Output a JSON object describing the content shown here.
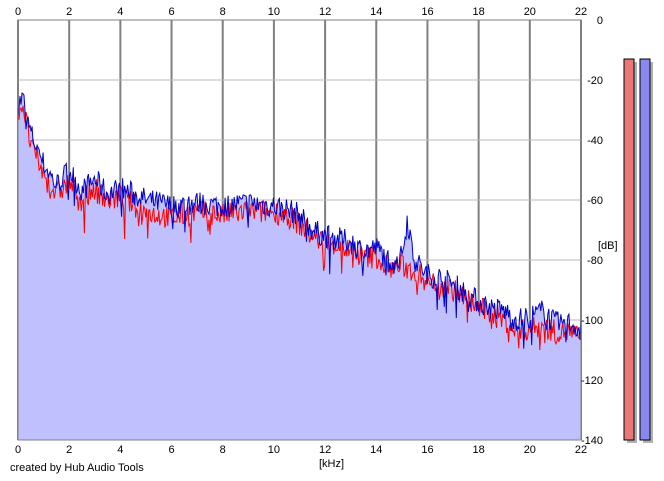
{
  "chart_data": {
    "type": "area",
    "title": "",
    "xlabel": "[kHz]",
    "ylabel": "[dB]",
    "xlim": [
      0,
      22
    ],
    "ylim": [
      -140,
      0
    ],
    "x_ticks": [
      "0",
      "2",
      "4",
      "6",
      "8",
      "10",
      "12",
      "14",
      "16",
      "18",
      "20",
      "22"
    ],
    "y_ticks": [
      "0",
      "-20",
      "-40",
      "-60",
      "-80",
      "-100",
      "-120",
      "-140"
    ],
    "grid": true,
    "fill_color": "#c0c0ff",
    "series": [
      {
        "color": "#0000cc",
        "x": [
          0,
          0.2,
          0.4,
          0.6,
          0.8,
          1.0,
          1.5,
          2.0,
          2.5,
          3.0,
          3.5,
          4.0,
          5.0,
          6.0,
          7.0,
          8.0,
          9.0,
          10.0,
          10.5,
          11.0,
          11.5,
          12.0,
          12.5,
          13.0,
          13.5,
          14.0,
          14.5,
          15.0,
          15.2,
          15.5,
          16.0,
          16.5,
          17.0,
          17.5,
          18.0,
          18.5,
          19.0,
          19.5,
          20.0,
          20.5,
          21.0,
          21.5,
          22.0
        ],
        "y": [
          -28,
          -26,
          -35,
          -40,
          -43,
          -48,
          -55,
          -50,
          -57,
          -53,
          -58,
          -56,
          -60,
          -62,
          -61,
          -62,
          -61,
          -62,
          -63,
          -65,
          -70,
          -72,
          -73,
          -74,
          -77,
          -76,
          -80,
          -79,
          -66,
          -80,
          -85,
          -86,
          -88,
          -91,
          -94,
          -96,
          -97,
          -100,
          -99,
          -97,
          -101,
          -101,
          -103
        ]
      },
      {
        "color": "#ff0000",
        "x": [
          0,
          0.2,
          0.4,
          0.6,
          0.8,
          1.0,
          1.5,
          2.0,
          2.5,
          3.0,
          3.5,
          4.0,
          5.0,
          6.0,
          7.0,
          8.0,
          9.0,
          10.0,
          10.5,
          11.0,
          11.5,
          12.0,
          12.5,
          13.0,
          13.5,
          14.0,
          14.5,
          15.0,
          15.5,
          16.0,
          16.5,
          17.0,
          17.5,
          18.0,
          18.5,
          19.0,
          19.5,
          20.0,
          20.5,
          21.0,
          21.5,
          22.0
        ],
        "y": [
          -30,
          -28,
          -38,
          -44,
          -47,
          -52,
          -58,
          -54,
          -60,
          -56,
          -60,
          -59,
          -64,
          -66,
          -64,
          -65,
          -64,
          -64,
          -65,
          -68,
          -72,
          -74,
          -75,
          -77,
          -79,
          -79,
          -83,
          -82,
          -84,
          -87,
          -88,
          -90,
          -93,
          -96,
          -98,
          -100,
          -104,
          -103,
          -102,
          -104,
          -104,
          -106
        ]
      }
    ],
    "meters": [
      {
        "channel": "left",
        "color": "#e87878",
        "top_db": -13
      },
      {
        "channel": "right",
        "color": "#8888f0",
        "top_db": -13
      }
    ]
  },
  "footer": {
    "credit": "created by Hub Audio Tools"
  }
}
